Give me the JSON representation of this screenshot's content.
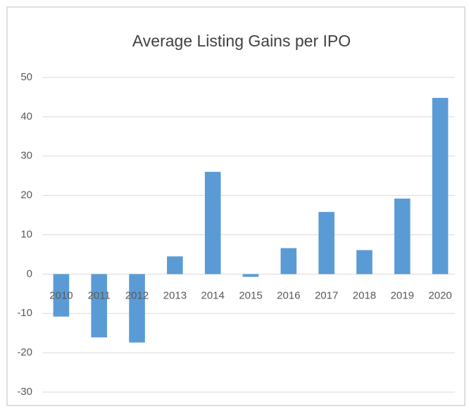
{
  "chart_data": {
    "type": "bar",
    "title": "Average Listing Gains per IPO",
    "categories": [
      "2010",
      "2011",
      "2012",
      "2013",
      "2014",
      "2015",
      "2016",
      "2017",
      "2018",
      "2019",
      "2020"
    ],
    "values": [
      -10.8,
      -16.1,
      -17.4,
      4.5,
      26,
      -0.7,
      6.6,
      15.8,
      6.1,
      19.2,
      44.8
    ],
    "color": "#5b9bd5",
    "ylim": [
      -30,
      50
    ],
    "yticks": [
      -30,
      -20,
      -10,
      0,
      10,
      20,
      30,
      40,
      50
    ],
    "grid": true
  }
}
